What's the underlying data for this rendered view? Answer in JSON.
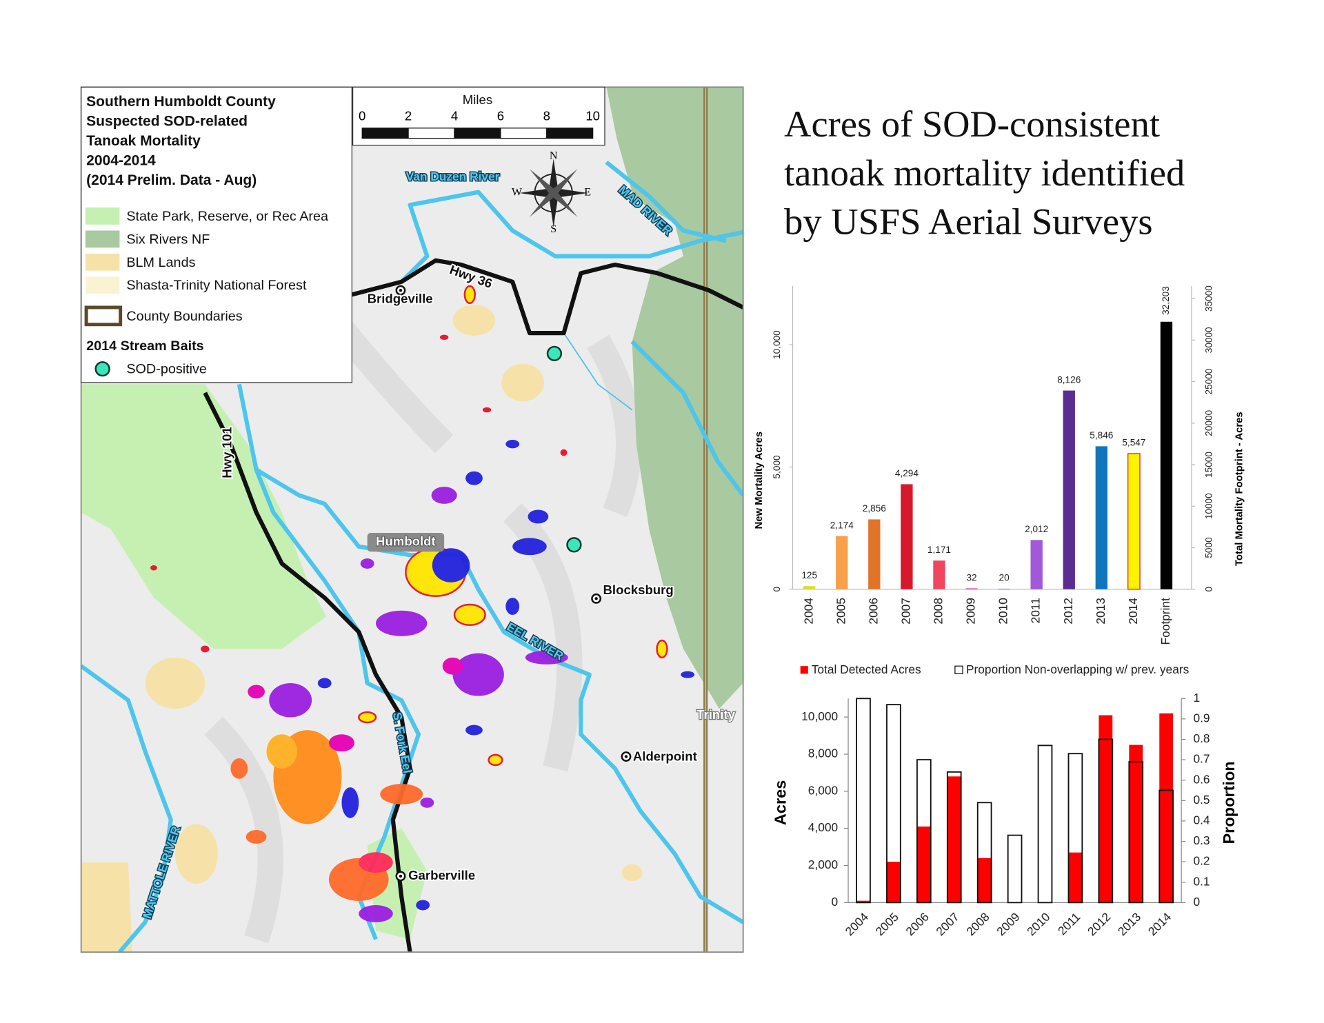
{
  "title": [
    "Acres of SOD-consistent",
    "tanoak mortality identified",
    "by USFS Aerial Surveys"
  ],
  "map": {
    "legend": {
      "title": [
        "Southern Humboldt County",
        "Suspected SOD-related",
        "Tanoak Mortality",
        "2004-2014",
        "(2014 Prelim. Data - Aug)"
      ],
      "items": [
        "State Park, Reserve, or Rec Area",
        "Six Rivers NF",
        "BLM Lands",
        "Shasta-Trinity National Forest",
        "County Boundaries"
      ],
      "stream_baits_heading": "2014 Stream Baits",
      "sod_positive": "SOD-positive"
    },
    "scale": {
      "unit": "Miles",
      "labels": [
        0,
        2,
        4,
        6,
        8,
        10
      ]
    },
    "compass": [
      "N",
      "E",
      "S",
      "W"
    ],
    "places": [
      "Van Duzen River",
      "MAD RIVER",
      "Hwy 36",
      "Bridgeville",
      "Hwy 101",
      "Humboldt",
      "Blocksburg",
      "EEL RIVER",
      "Trinity",
      "S. Fork Eel",
      "Alderpoint",
      "Garberville",
      "MATTOLE RIVER"
    ]
  },
  "chart_data": [
    {
      "type": "bar",
      "y_label": "New Mortality Acres",
      "y2_label": "Total Mortality Footprint - Acres",
      "categories": [
        "2004",
        "2005",
        "2006",
        "2007",
        "2008",
        "2009",
        "2010",
        "2011",
        "2012",
        "2013",
        "2014",
        "Footprint"
      ],
      "series": [
        {
          "values": [
            125,
            2174,
            2856,
            4294,
            1171,
            32,
            20,
            2012,
            8126,
            5846,
            5547,
            null
          ],
          "value_labels": [
            "125",
            "2,174",
            "2,856",
            "4,294",
            "1,171",
            "32",
            "20",
            "2,012",
            "8,126",
            "5,846",
            "5,547",
            null
          ],
          "colors": [
            "#d9e021",
            "#f9a04a",
            "#e2742a",
            "#d7182a",
            "#f0475f",
            "#e6007e",
            "#8e44ad",
            "#a259d9",
            "#5c2d91",
            "#0f75bc",
            "#fff200",
            null
          ]
        },
        {
          "axis": "y2",
          "color": "#000000",
          "values": [
            null,
            null,
            null,
            null,
            null,
            null,
            null,
            null,
            null,
            null,
            null,
            32203
          ],
          "value_labels": [
            null,
            null,
            null,
            null,
            null,
            null,
            null,
            null,
            null,
            null,
            null,
            "32,203"
          ]
        }
      ],
      "ylim": [
        0,
        12400
      ],
      "yticks": [
        0,
        {
          "value": 5000,
          "label": "5,000"
        },
        {
          "value": 10000,
          "label": "10,000"
        }
      ],
      "y2lim": [
        0,
        36500
      ],
      "y2ticks": [
        0,
        5000,
        10000,
        15000,
        20000,
        25000,
        30000,
        35000
      ],
      "grid": false
    },
    {
      "type": "bar_overlay",
      "y_label": "Acres",
      "y2_label": "Proportion",
      "categories": [
        "2004",
        "2005",
        "2006",
        "2007",
        "2008",
        "2009",
        "2010",
        "2011",
        "2012",
        "2013",
        "2014"
      ],
      "series": [
        {
          "name": "Total Detected Acres",
          "color": "#ff0000",
          "values": [
            100,
            2200,
            4100,
            6800,
            2400,
            30,
            0,
            2700,
            10100,
            8500,
            10200
          ]
        },
        {
          "name": "Proportion Non-overlapping w/ prev. years",
          "color": "#ffffff",
          "axis": "y2",
          "values": [
            1.0,
            0.97,
            0.7,
            0.64,
            0.49,
            0.33,
            0.77,
            0.73,
            0.8,
            0.69,
            0.55
          ]
        }
      ],
      "ylim": [
        0,
        11000
      ],
      "yticks": [
        0,
        {
          "value": 2000,
          "label": "2,000"
        },
        {
          "value": 4000,
          "label": "4,000"
        },
        {
          "value": 6000,
          "label": "6,000"
        },
        {
          "value": 8000,
          "label": "8,000"
        },
        {
          "value": 10000,
          "label": "10,000"
        }
      ],
      "y2lim": [
        0,
        1
      ],
      "y2ticks": [
        0,
        0.1,
        0.2,
        0.3,
        0.4,
        0.5,
        0.6,
        0.7,
        0.8,
        0.9,
        1
      ],
      "legend": "top",
      "grid": false
    }
  ]
}
